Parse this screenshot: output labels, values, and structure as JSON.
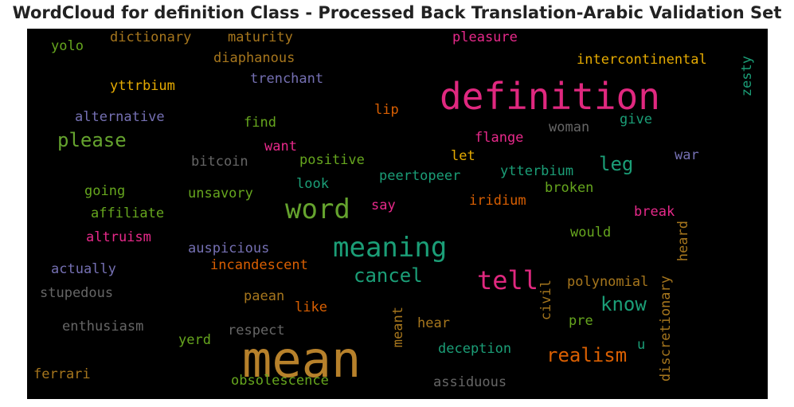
{
  "title": "WordCloud for definition Class - Processed Back Translation-Arabic Validation Set",
  "chart_data": {
    "type": "wordcloud",
    "words": [
      {
        "text": "mean",
        "color": "#b7812b"
      },
      {
        "text": "definition",
        "color": "#e0287f"
      },
      {
        "text": "word",
        "color": "#65a32e"
      },
      {
        "text": "meaning",
        "color": "#1b9e77"
      },
      {
        "text": "tell",
        "color": "#e0287f"
      },
      {
        "text": "please",
        "color": "#65a32e"
      },
      {
        "text": "know",
        "color": "#1b9e77"
      },
      {
        "text": "realism",
        "color": "#d95f02"
      },
      {
        "text": "cancel",
        "color": "#1b9e77"
      },
      {
        "text": "leg",
        "color": "#1b9e77"
      },
      {
        "text": "dictionary",
        "color": "#a6761d"
      },
      {
        "text": "maturity",
        "color": "#a6761d"
      },
      {
        "text": "pleasure",
        "color": "#e7298a"
      },
      {
        "text": "yolo",
        "color": "#66a61e"
      },
      {
        "text": "diaphanous",
        "color": "#a6761d"
      },
      {
        "text": "intercontinental",
        "color": "#e6ab02"
      },
      {
        "text": "zesty",
        "color": "#1b9e77"
      },
      {
        "text": "trenchant",
        "color": "#7570b3"
      },
      {
        "text": "yttrbium",
        "color": "#e6ab02"
      },
      {
        "text": "lip",
        "color": "#d95f02"
      },
      {
        "text": "alternative",
        "color": "#7570b3"
      },
      {
        "text": "find",
        "color": "#66a61e"
      },
      {
        "text": "woman",
        "color": "#666666"
      },
      {
        "text": "give",
        "color": "#1b9e77"
      },
      {
        "text": "flange",
        "color": "#e7298a"
      },
      {
        "text": "want",
        "color": "#e7298a"
      },
      {
        "text": "war",
        "color": "#7570b3"
      },
      {
        "text": "bitcoin",
        "color": "#666666"
      },
      {
        "text": "positive",
        "color": "#66a61e"
      },
      {
        "text": "let",
        "color": "#e6ab02"
      },
      {
        "text": "ytterbium",
        "color": "#1b9e77"
      },
      {
        "text": "peertopeer",
        "color": "#1b9e77"
      },
      {
        "text": "going",
        "color": "#66a61e"
      },
      {
        "text": "unsavory",
        "color": "#66a61e"
      },
      {
        "text": "look",
        "color": "#1b9e77"
      },
      {
        "text": "broken",
        "color": "#66a61e"
      },
      {
        "text": "iridium",
        "color": "#d95f02"
      },
      {
        "text": "say",
        "color": "#e7298a"
      },
      {
        "text": "affiliate",
        "color": "#66a61e"
      },
      {
        "text": "break",
        "color": "#e7298a"
      },
      {
        "text": "altruism",
        "color": "#e7298a"
      },
      {
        "text": "heard",
        "color": "#a6761d"
      },
      {
        "text": "would",
        "color": "#66a61e"
      },
      {
        "text": "auspicious",
        "color": "#7570b3"
      },
      {
        "text": "actually",
        "color": "#7570b3"
      },
      {
        "text": "incandescent",
        "color": "#d95f02"
      },
      {
        "text": "civil",
        "color": "#a6761d"
      },
      {
        "text": "polynomial",
        "color": "#a6761d"
      },
      {
        "text": "discretionary",
        "color": "#a6761d"
      },
      {
        "text": "stupedous",
        "color": "#666666"
      },
      {
        "text": "paean",
        "color": "#a6761d"
      },
      {
        "text": "like",
        "color": "#d95f02"
      },
      {
        "text": "meant",
        "color": "#a6761d"
      },
      {
        "text": "pre",
        "color": "#66a61e"
      },
      {
        "text": "enthusiasm",
        "color": "#666666"
      },
      {
        "text": "respect",
        "color": "#666666"
      },
      {
        "text": "hear",
        "color": "#a6761d"
      },
      {
        "text": "yerd",
        "color": "#66a61e"
      },
      {
        "text": "deception",
        "color": "#1b9e77"
      },
      {
        "text": "u",
        "color": "#1b9e77"
      },
      {
        "text": "ferrari",
        "color": "#a6761d"
      },
      {
        "text": "obsolescence",
        "color": "#66a61e"
      },
      {
        "text": "assiduous",
        "color": "#666666"
      }
    ]
  }
}
